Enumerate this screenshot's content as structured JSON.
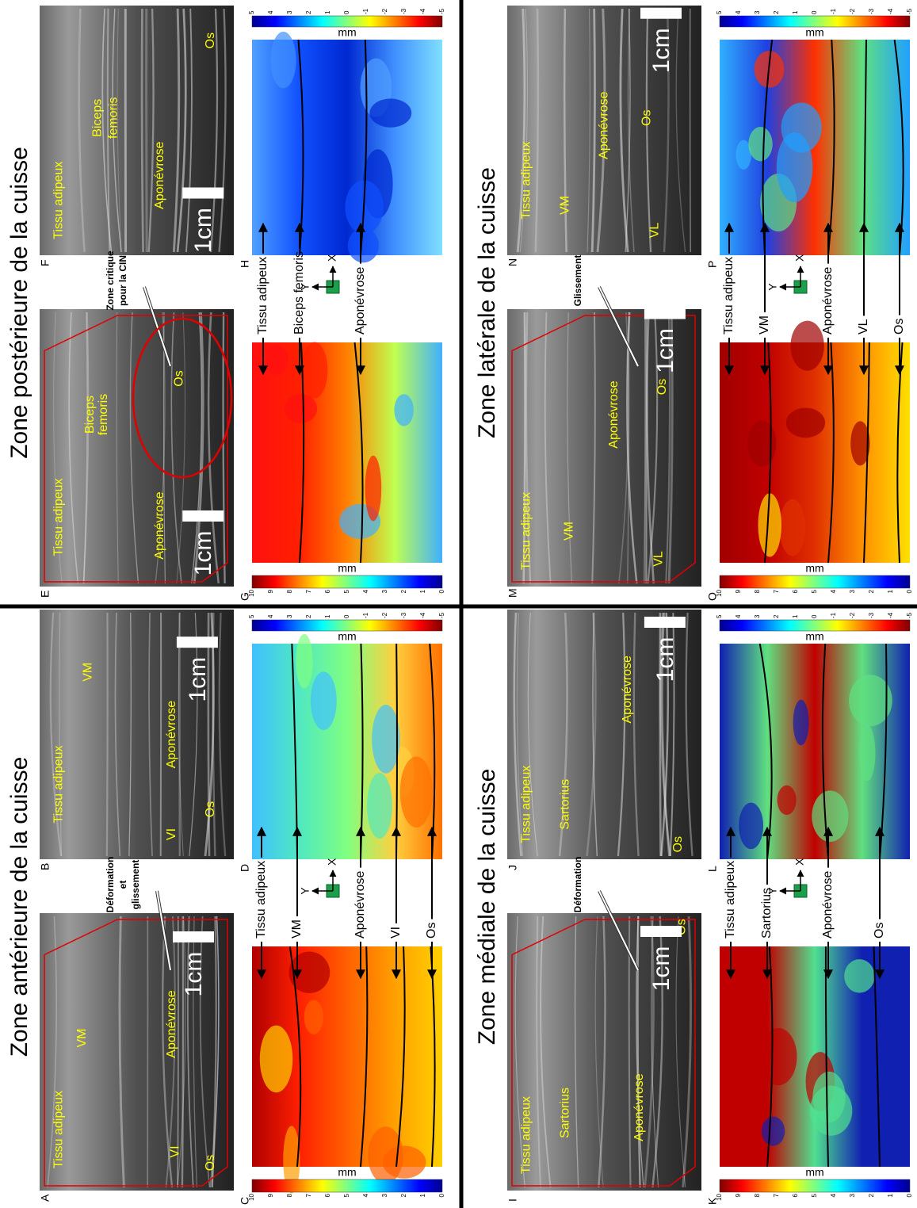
{
  "quadrants": [
    {
      "title": "Zone antérieure de la cuisse",
      "images": [
        {
          "letter": "A",
          "labels": [
            "Tissu adipeux",
            "VM",
            "Aponévrose",
            "VI",
            "Os",
            "1cm"
          ]
        },
        {
          "letter": "B",
          "labels": [
            "Tissu adipeux",
            "VM",
            "Aponévrose",
            "VI",
            "Os",
            "1cm"
          ]
        }
      ],
      "annotation": [
        "Déformation",
        "et",
        "glissement"
      ],
      "maps": [
        {
          "letter": "C",
          "unit": "mm",
          "ticks": [
            "10",
            "9",
            "8",
            "7",
            "6",
            "5",
            "4",
            "3",
            "2",
            "1",
            "0"
          ]
        },
        {
          "letter": "D",
          "unit": "mm",
          "ticks": [
            "5",
            "4",
            "3",
            "2",
            "1",
            "0",
            "-1",
            "-2",
            "-3",
            "-4",
            "-5"
          ]
        }
      ],
      "legend": [
        "Tissu adipeux",
        "VM",
        "Aponévrose",
        "VI",
        "Os"
      ],
      "axes": [
        "X",
        "Y"
      ]
    },
    {
      "title": "Zone postérieure de la cuisse",
      "images": [
        {
          "letter": "E",
          "labels": [
            "Tissu adipeux",
            "Biceps",
            "femoris",
            "Aponévrose",
            "Os",
            "1cm"
          ]
        },
        {
          "letter": "F",
          "labels": [
            "Tissu adipeux",
            "Biceps",
            "femoris",
            "Aponévrose",
            "Os",
            "1cm"
          ]
        }
      ],
      "annotation": [
        "Zone critique",
        "pour la CIN"
      ],
      "maps": [
        {
          "letter": "G",
          "unit": "mm",
          "ticks": [
            "10",
            "9",
            "8",
            "7",
            "6",
            "5",
            "4",
            "3",
            "2",
            "1",
            "0"
          ]
        },
        {
          "letter": "H",
          "unit": "mm",
          "ticks": [
            "5",
            "4",
            "3",
            "2",
            "1",
            "0",
            "-1",
            "-2",
            "-3",
            "-4",
            "-5"
          ]
        }
      ],
      "legend": [
        "Tissu adipeux",
        "Biceps femoris",
        "Aponévrose"
      ],
      "axes": [
        "X",
        "Y"
      ]
    },
    {
      "title": "Zone médiale de la cuisse",
      "images": [
        {
          "letter": "I",
          "labels": [
            "Tissu adipeux",
            "Sartorius",
            "Aponévrose",
            "Os",
            "1cm"
          ]
        },
        {
          "letter": "J",
          "labels": [
            "Tissu adipeux",
            "Sartorius",
            "Aponévrose",
            "Os",
            "1cm"
          ]
        }
      ],
      "annotation": [
        "Déformation"
      ],
      "maps": [
        {
          "letter": "K",
          "unit": "mm",
          "ticks": [
            "10",
            "9",
            "8",
            "7",
            "6",
            "5",
            "4",
            "3",
            "2",
            "1",
            "0"
          ]
        },
        {
          "letter": "L",
          "unit": "mm",
          "ticks": [
            "5",
            "4",
            "3",
            "2",
            "1",
            "0",
            "-1",
            "-2",
            "-3",
            "-4",
            "-5"
          ]
        }
      ],
      "legend": [
        "Tissu adipeux",
        "Sartorius",
        "Aponévrose",
        "Os"
      ],
      "axes": [
        "X",
        "Y"
      ]
    },
    {
      "title": "Zone latérale de la cuisse",
      "images": [
        {
          "letter": "M",
          "labels": [
            "Tissu adipeux",
            "VM",
            "Aponévrose",
            "VL",
            "Os",
            "1cm"
          ]
        },
        {
          "letter": "N",
          "labels": [
            "Tissu adipeux",
            "VM",
            "Aponévrose",
            "VL",
            "Os",
            "1cm"
          ]
        }
      ],
      "annotation": [
        "Glissement"
      ],
      "maps": [
        {
          "letter": "O",
          "unit": "mm",
          "ticks": [
            "10",
            "9",
            "8",
            "7",
            "6",
            "5",
            "4",
            "3",
            "2",
            "1",
            "0"
          ]
        },
        {
          "letter": "P",
          "unit": "mm",
          "ticks": [
            "5",
            "4",
            "3",
            "2",
            "1",
            "0",
            "-1",
            "-2",
            "-3",
            "-4",
            "-5"
          ]
        }
      ],
      "legend": [
        "Tissu adipeux",
        "VM",
        "Aponévrose",
        "VL",
        "Os"
      ],
      "axes": [
        "X",
        "Y"
      ]
    }
  ]
}
